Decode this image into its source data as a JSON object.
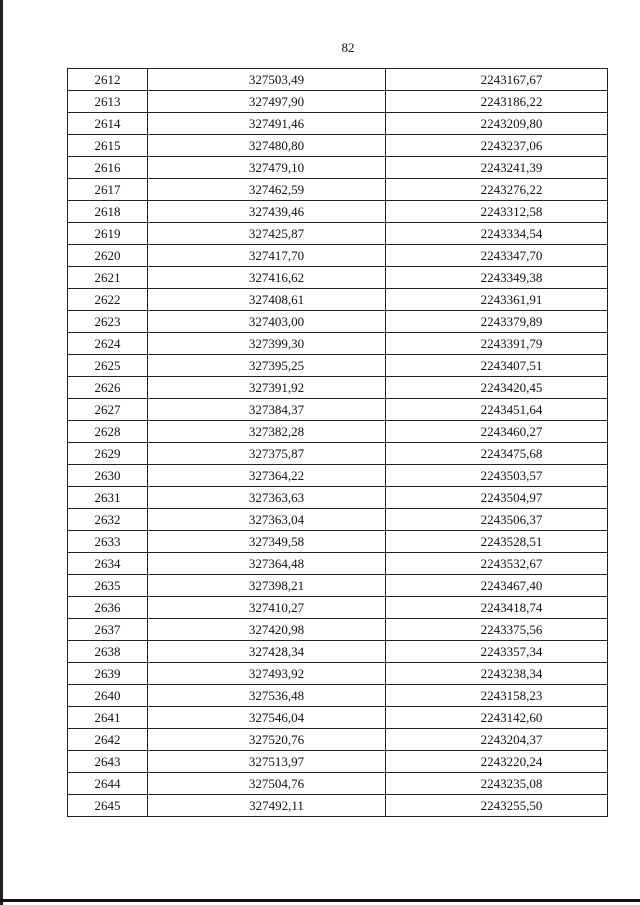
{
  "page_number": "82",
  "rows": [
    [
      "2612",
      "327503,49",
      "2243167,67"
    ],
    [
      "2613",
      "327497,90",
      "2243186,22"
    ],
    [
      "2614",
      "327491,46",
      "2243209,80"
    ],
    [
      "2615",
      "327480,80",
      "2243237,06"
    ],
    [
      "2616",
      "327479,10",
      "2243241,39"
    ],
    [
      "2617",
      "327462,59",
      "2243276,22"
    ],
    [
      "2618",
      "327439,46",
      "2243312,58"
    ],
    [
      "2619",
      "327425,87",
      "2243334,54"
    ],
    [
      "2620",
      "327417,70",
      "2243347,70"
    ],
    [
      "2621",
      "327416,62",
      "2243349,38"
    ],
    [
      "2622",
      "327408,61",
      "2243361,91"
    ],
    [
      "2623",
      "327403,00",
      "2243379,89"
    ],
    [
      "2624",
      "327399,30",
      "2243391,79"
    ],
    [
      "2625",
      "327395,25",
      "2243407,51"
    ],
    [
      "2626",
      "327391,92",
      "2243420,45"
    ],
    [
      "2627",
      "327384,37",
      "2243451,64"
    ],
    [
      "2628",
      "327382,28",
      "2243460,27"
    ],
    [
      "2629",
      "327375,87",
      "2243475,68"
    ],
    [
      "2630",
      "327364,22",
      "2243503,57"
    ],
    [
      "2631",
      "327363,63",
      "2243504,97"
    ],
    [
      "2632",
      "327363,04",
      "2243506,37"
    ],
    [
      "2633",
      "327349,58",
      "2243528,51"
    ],
    [
      "2634",
      "327364,48",
      "2243532,67"
    ],
    [
      "2635",
      "327398,21",
      "2243467,40"
    ],
    [
      "2636",
      "327410,27",
      "2243418,74"
    ],
    [
      "2637",
      "327420,98",
      "2243375,56"
    ],
    [
      "2638",
      "327428,34",
      "2243357,34"
    ],
    [
      "2639",
      "327493,92",
      "2243238,34"
    ],
    [
      "2640",
      "327536,48",
      "2243158,23"
    ],
    [
      "2641",
      "327546,04",
      "2243142,60"
    ],
    [
      "2642",
      "327520,76",
      "2243204,37"
    ],
    [
      "2643",
      "327513,97",
      "2243220,24"
    ],
    [
      "2644",
      "327504,76",
      "2243235,08"
    ],
    [
      "2645",
      "327492,11",
      "2243255,50"
    ]
  ]
}
